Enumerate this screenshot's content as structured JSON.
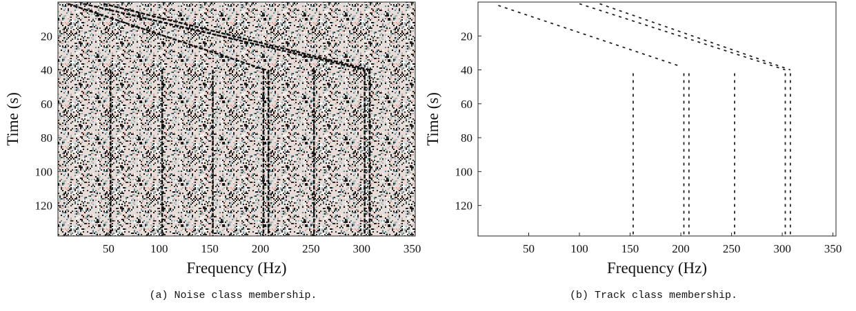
{
  "chart_data": [
    {
      "type": "heatmap",
      "caption": "(a) Noise class membership.",
      "xlabel": "Frequency (Hz)",
      "ylabel": "Time (s)",
      "xlim": [
        0,
        353
      ],
      "ylim": [
        138,
        0
      ],
      "xticks": [
        50,
        100,
        150,
        200,
        250,
        300,
        350
      ],
      "yticks": [
        20,
        40,
        60,
        80,
        100,
        120
      ],
      "background": "noise",
      "track_color": "#111111",
      "tracks": [
        {
          "x": [
            25,
            303
          ],
          "y": [
            1,
            40
          ]
        },
        {
          "x": [
            45,
            308
          ],
          "y": [
            1,
            40
          ]
        },
        {
          "x": [
            10,
            205
          ],
          "y": [
            1,
            40
          ]
        },
        {
          "x": [
            52,
            52
          ],
          "y": [
            40,
            138
          ]
        },
        {
          "x": [
            103,
            103
          ],
          "y": [
            40,
            138
          ]
        },
        {
          "x": [
            153,
            153
          ],
          "y": [
            40,
            138
          ]
        },
        {
          "x": [
            203,
            203
          ],
          "y": [
            40,
            138
          ]
        },
        {
          "x": [
            208,
            208
          ],
          "y": [
            40,
            138
          ]
        },
        {
          "x": [
            253,
            253
          ],
          "y": [
            40,
            138
          ]
        },
        {
          "x": [
            303,
            303
          ],
          "y": [
            40,
            138
          ]
        },
        {
          "x": [
            308,
            308
          ],
          "y": [
            40,
            138
          ]
        }
      ]
    },
    {
      "type": "heatmap",
      "caption": "(b) Track class membership.",
      "xlabel": "Frequency (Hz)",
      "ylabel": "Time (s)",
      "xlim": [
        0,
        353
      ],
      "ylim": [
        138,
        0
      ],
      "xticks": [
        50,
        100,
        150,
        200,
        250,
        300,
        350
      ],
      "yticks": [
        20,
        40,
        60,
        80,
        100,
        120
      ],
      "background": "plain",
      "track_color": "#222222",
      "tracks": [
        {
          "x": [
            100,
            303
          ],
          "y": [
            1,
            40
          ]
        },
        {
          "x": [
            120,
            308
          ],
          "y": [
            1,
            40
          ]
        },
        {
          "x": [
            20,
            200
          ],
          "y": [
            2,
            38
          ]
        },
        {
          "x": [
            153,
            153
          ],
          "y": [
            42,
            138
          ]
        },
        {
          "x": [
            203,
            203
          ],
          "y": [
            42,
            138
          ]
        },
        {
          "x": [
            208,
            208
          ],
          "y": [
            42,
            138
          ]
        },
        {
          "x": [
            253,
            253
          ],
          "y": [
            42,
            138
          ]
        },
        {
          "x": [
            303,
            303
          ],
          "y": [
            42,
            138
          ]
        },
        {
          "x": [
            308,
            308
          ],
          "y": [
            42,
            138
          ]
        }
      ]
    }
  ]
}
